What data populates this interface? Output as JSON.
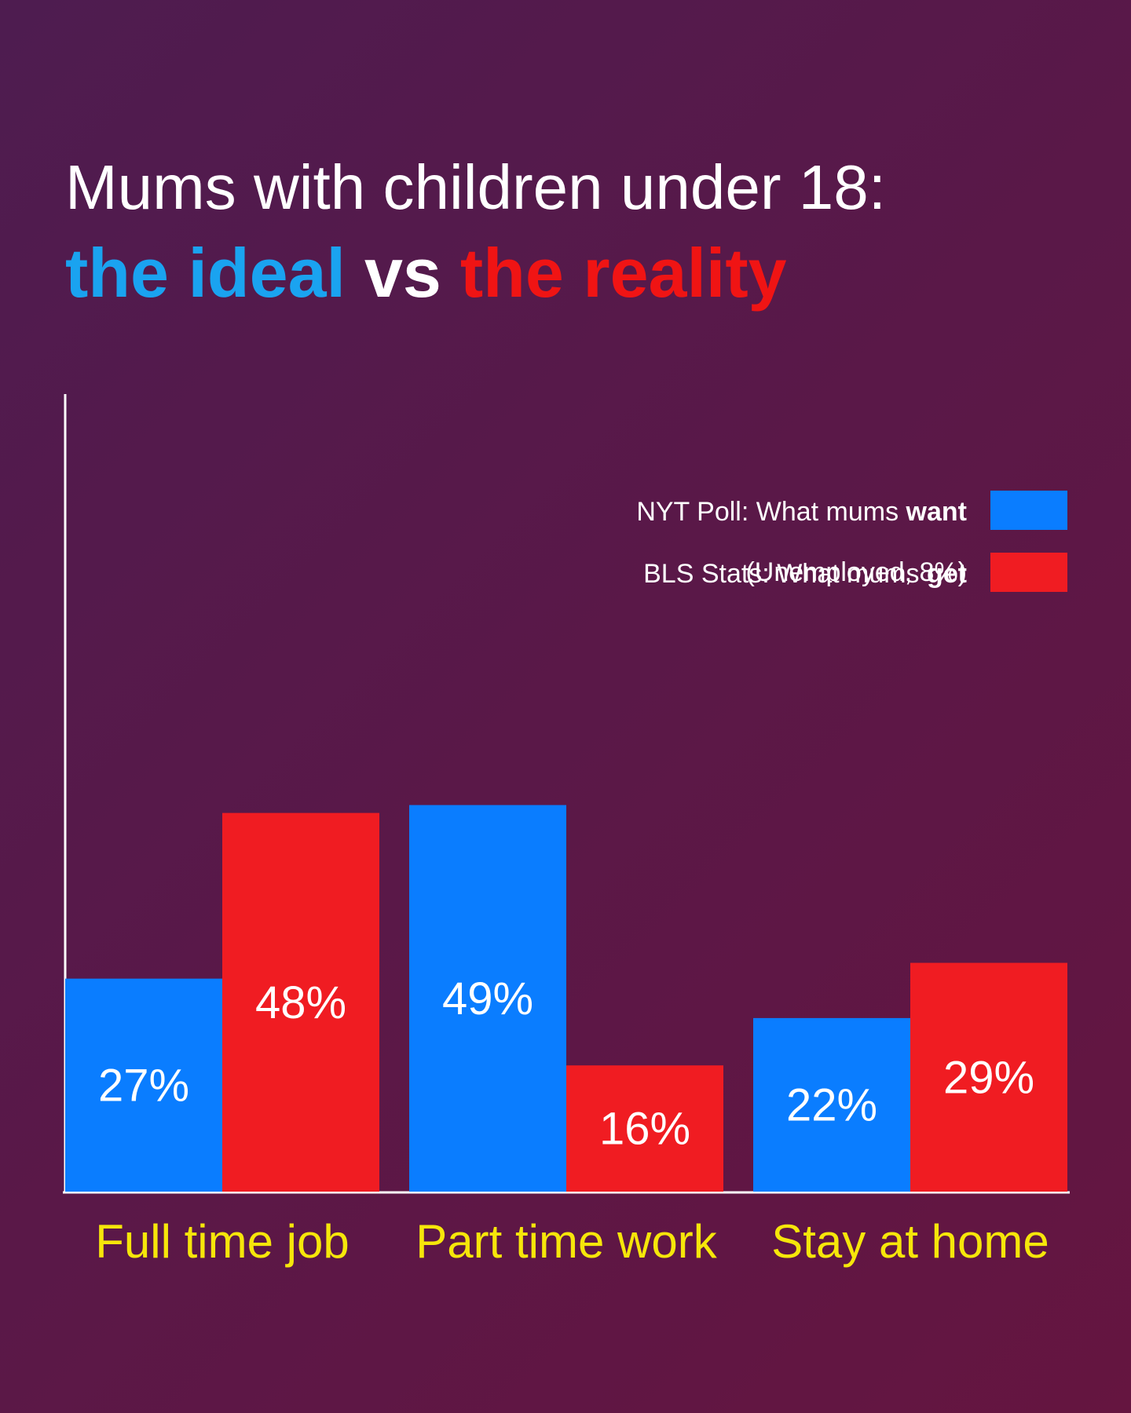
{
  "chart_data": {
    "type": "bar",
    "title": "Mums with children under 18:",
    "subtitle": [
      {
        "text": "the ideal",
        "color": "#1aa3f0"
      },
      {
        "text": "vs",
        "color": "#ffffff"
      },
      {
        "text": "the reality",
        "color": "#f01414"
      }
    ],
    "categories": [
      "Full time job",
      "Part time work",
      "Stay at home"
    ],
    "series": [
      {
        "name": "NYT Poll: What mums want",
        "color": "#0a7dff",
        "values": [
          27,
          49,
          22
        ],
        "value_labels": [
          "27%",
          "49%",
          "22%"
        ]
      },
      {
        "name": "BLS Stats: What mums get",
        "color": "#f01c22",
        "values": [
          48,
          16,
          29
        ],
        "value_labels": [
          "48%",
          "16%",
          "29%"
        ]
      }
    ],
    "annotation": "(Unemployed, 8%)",
    "ylim": [
      0,
      100
    ],
    "legend": "top-right",
    "grid": false
  }
}
